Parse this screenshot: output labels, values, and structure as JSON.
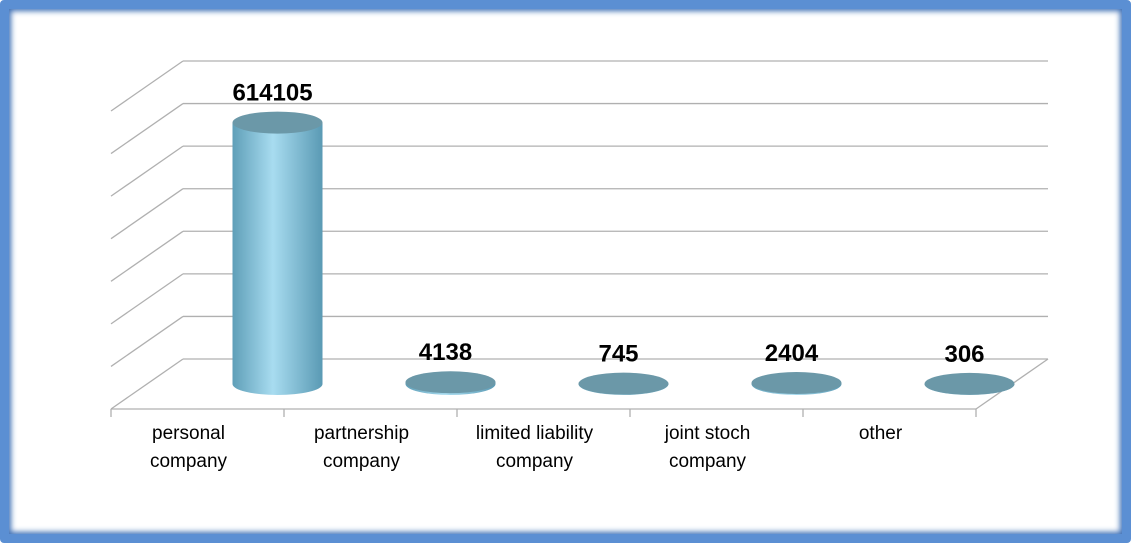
{
  "chart_data": {
    "type": "bar3d",
    "categories": [
      "personal company",
      "partnership company",
      "limited liability company",
      "joint stoch company",
      "other"
    ],
    "values": [
      614105,
      4138,
      745,
      2404,
      306
    ],
    "color": "#7fc4dc",
    "ylim": [
      0,
      700000
    ],
    "yticks": [
      0,
      100000,
      200000,
      300000,
      400000,
      500000,
      600000,
      700000
    ],
    "grid": true
  }
}
